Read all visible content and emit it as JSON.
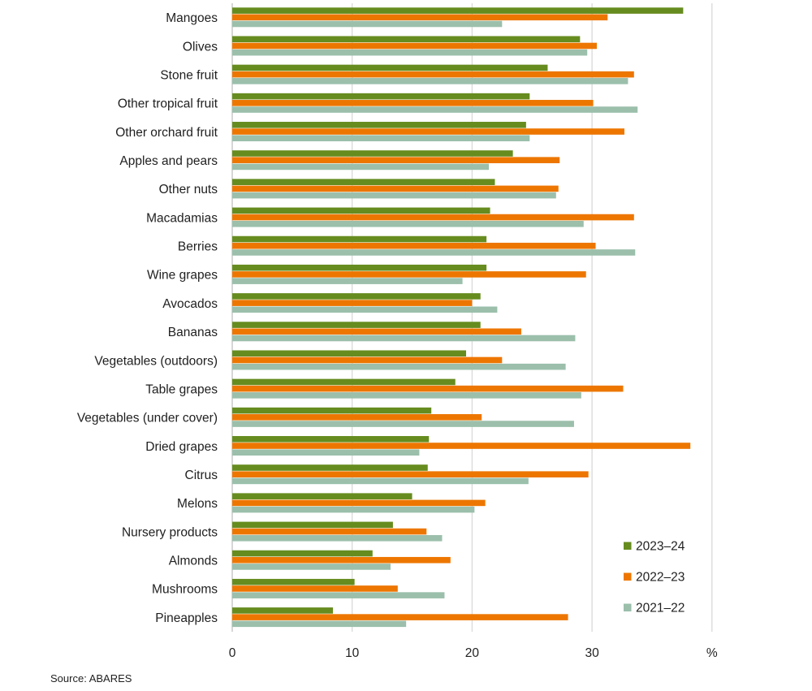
{
  "chart_data": {
    "type": "bar",
    "orientation": "horizontal",
    "title": "",
    "xlabel": "%",
    "ylabel": "",
    "xlim": [
      0,
      40
    ],
    "xticks": [
      0,
      10,
      20,
      30
    ],
    "x_unit_label": "%",
    "grid": true,
    "legend_position": "bottom-right",
    "categories": [
      "Mangoes",
      "Olives",
      "Stone fruit",
      "Other tropical fruit",
      "Other orchard fruit",
      "Apples and pears",
      "Other nuts",
      "Macadamias",
      "Berries",
      "Wine grapes",
      "Avocados",
      "Bananas",
      "Vegetables (outdoors)",
      "Table grapes",
      "Vegetables (under cover)",
      "Dried grapes",
      "Citrus",
      "Melons",
      "Nursery products",
      "Almonds",
      "Mushrooms",
      "Pineapples"
    ],
    "series": [
      {
        "name": "2023–24",
        "color": "#668c1f",
        "values": [
          37.6,
          29.0,
          26.3,
          24.8,
          24.5,
          23.4,
          21.9,
          21.5,
          21.2,
          21.2,
          20.7,
          20.7,
          19.5,
          18.6,
          16.6,
          16.4,
          16.3,
          15.0,
          13.4,
          11.7,
          10.2,
          8.4
        ]
      },
      {
        "name": "2022–23",
        "color": "#ed7600",
        "values": [
          31.3,
          30.4,
          33.5,
          30.1,
          32.7,
          27.3,
          27.2,
          33.5,
          30.3,
          29.5,
          20.0,
          24.1,
          22.5,
          32.6,
          20.8,
          38.2,
          29.7,
          21.1,
          16.2,
          18.2,
          13.8,
          28.0
        ]
      },
      {
        "name": "2021–22",
        "color": "#9bbfab",
        "values": [
          22.5,
          29.6,
          33.0,
          33.8,
          24.8,
          21.4,
          27.0,
          29.3,
          33.6,
          19.2,
          22.1,
          28.6,
          27.8,
          29.1,
          28.5,
          15.6,
          24.7,
          20.2,
          17.5,
          13.2,
          17.7,
          14.5
        ]
      }
    ],
    "source": "Source: ABARES"
  }
}
